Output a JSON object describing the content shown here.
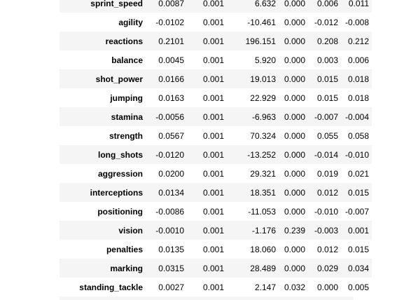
{
  "rows": [
    {
      "label": "sprint_speed",
      "v": [
        "0.0087",
        "0.001",
        "6.632",
        "0.000",
        "0.006",
        "0.011"
      ]
    },
    {
      "label": "agility",
      "v": [
        "-0.0102",
        "0.001",
        "-10.461",
        "0.000",
        "-0.012",
        "-0.008"
      ]
    },
    {
      "label": "reactions",
      "v": [
        "0.2101",
        "0.001",
        "196.151",
        "0.000",
        "0.208",
        "0.212"
      ]
    },
    {
      "label": "balance",
      "v": [
        "0.0045",
        "0.001",
        "5.920",
        "0.000",
        "0.003",
        "0.006"
      ]
    },
    {
      "label": "shot_power",
      "v": [
        "0.0166",
        "0.001",
        "19.013",
        "0.000",
        "0.015",
        "0.018"
      ]
    },
    {
      "label": "jumping",
      "v": [
        "0.0163",
        "0.001",
        "22.929",
        "0.000",
        "0.015",
        "0.018"
      ]
    },
    {
      "label": "stamina",
      "v": [
        "-0.0056",
        "0.001",
        "-6.963",
        "0.000",
        "-0.007",
        "-0.004"
      ]
    },
    {
      "label": "strength",
      "v": [
        "0.0567",
        "0.001",
        "70.324",
        "0.000",
        "0.055",
        "0.058"
      ]
    },
    {
      "label": "long_shots",
      "v": [
        "-0.0120",
        "0.001",
        "-13.252",
        "0.000",
        "-0.014",
        "-0.010"
      ]
    },
    {
      "label": "aggression",
      "v": [
        "0.0200",
        "0.001",
        "29.321",
        "0.000",
        "0.019",
        "0.021"
      ]
    },
    {
      "label": "interceptions",
      "v": [
        "0.0134",
        "0.001",
        "18.351",
        "0.000",
        "0.012",
        "0.015"
      ]
    },
    {
      "label": "positioning",
      "v": [
        "-0.0086",
        "0.001",
        "-11.053",
        "0.000",
        "-0.010",
        "-0.007"
      ]
    },
    {
      "label": "vision",
      "v": [
        "-0.0010",
        "0.001",
        "-1.176",
        "0.239",
        "-0.003",
        "0.001"
      ]
    },
    {
      "label": "penalties",
      "v": [
        "0.0135",
        "0.001",
        "18.060",
        "0.000",
        "0.012",
        "0.015"
      ]
    },
    {
      "label": "marking",
      "v": [
        "0.0315",
        "0.001",
        "28.489",
        "0.000",
        "0.029",
        "0.034"
      ]
    },
    {
      "label": "standing_tackle",
      "v": [
        "0.0027",
        "0.001",
        "2.147",
        "0.032",
        "0.000",
        "0.005"
      ]
    }
  ]
}
